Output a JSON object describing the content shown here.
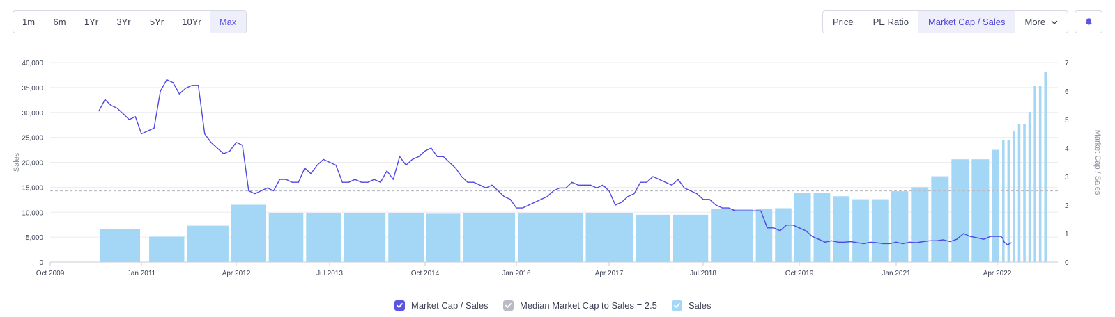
{
  "ranges": [
    {
      "label": "1m",
      "active": false
    },
    {
      "label": "6m",
      "active": false
    },
    {
      "label": "1Yr",
      "active": false
    },
    {
      "label": "3Yr",
      "active": false
    },
    {
      "label": "5Yr",
      "active": false
    },
    {
      "label": "10Yr",
      "active": false
    },
    {
      "label": "Max",
      "active": true
    }
  ],
  "metrics": [
    {
      "label": "Price",
      "active": false
    },
    {
      "label": "PE Ratio",
      "active": false
    },
    {
      "label": "Market Cap / Sales",
      "active": true
    }
  ],
  "more_label": "More",
  "legend": [
    {
      "label": "Market Cap / Sales",
      "color": "#5b55e6",
      "checked": true
    },
    {
      "label": "Median Market Cap to Sales = 2.5",
      "color": "#b9bcc4",
      "checked": true
    },
    {
      "label": "Sales",
      "color": "#a3d7f5",
      "checked": true
    }
  ],
  "colors": {
    "line": "#4f48e2",
    "bars": "#a3d7f5",
    "median": "#b9bcc4",
    "grid": "#ececf0",
    "axis_text": "#3a3f52",
    "active_accent": "#5b55e6"
  },
  "chart_data": {
    "type": "bar",
    "xlabel": "",
    "x_ticks": [
      "Oct 2009",
      "Jan 2011",
      "Apr 2012",
      "Jul 2013",
      "Oct 2014",
      "Jan 2016",
      "Apr 2017",
      "Jul 2018",
      "Oct 2019",
      "Jan 2021",
      "Apr 2022"
    ],
    "x_tick_dates": [
      "2009-10",
      "2011-01",
      "2012-04",
      "2013-07",
      "2014-10",
      "2016-01",
      "2017-04",
      "2018-07",
      "2019-10",
      "2021-01",
      "2022-04"
    ],
    "x_range": [
      "2009-10",
      "2022-12"
    ],
    "y_left": {
      "label": "Sales",
      "ylim": [
        0,
        40000
      ],
      "ticks": [
        "0",
        "5,000",
        "10,000",
        "15,000",
        "20,000",
        "25,000",
        "30,000",
        "35,000",
        "40,000"
      ]
    },
    "y_right": {
      "label": "Market Cap / Sales",
      "ylim": [
        0,
        7
      ],
      "ticks": [
        "0",
        "1",
        "2",
        "3",
        "4",
        "5",
        "6",
        "7"
      ]
    },
    "grid": true,
    "legend_position": "bottom",
    "sales_bars": [
      {
        "start": "2010-06",
        "end": "2011-01",
        "value": 6600
      },
      {
        "start": "2011-02",
        "end": "2011-08",
        "value": 5100
      },
      {
        "start": "2011-08",
        "end": "2012-03",
        "value": 7300
      },
      {
        "start": "2012-03",
        "end": "2012-09",
        "value": 11500
      },
      {
        "start": "2012-09",
        "end": "2013-03",
        "value": 9800
      },
      {
        "start": "2013-03",
        "end": "2013-09",
        "value": 9800
      },
      {
        "start": "2013-09",
        "end": "2014-04",
        "value": 9900
      },
      {
        "start": "2014-04",
        "end": "2014-10",
        "value": 9900
      },
      {
        "start": "2014-10",
        "end": "2015-04",
        "value": 9700
      },
      {
        "start": "2015-04",
        "end": "2016-01",
        "value": 9900
      },
      {
        "start": "2016-01",
        "end": "2016-12",
        "value": 9800
      },
      {
        "start": "2016-12",
        "end": "2017-08",
        "value": 9800
      },
      {
        "start": "2017-08",
        "end": "2018-02",
        "value": 9500
      },
      {
        "start": "2018-02",
        "end": "2018-08",
        "value": 9500
      },
      {
        "start": "2018-08",
        "end": "2019-03",
        "value": 10700
      },
      {
        "start": "2019-03",
        "end": "2019-06",
        "value": 10700
      },
      {
        "start": "2019-06",
        "end": "2019-09",
        "value": 10800
      },
      {
        "start": "2019-09",
        "end": "2019-12",
        "value": 13800
      },
      {
        "start": "2019-12",
        "end": "2020-03",
        "value": 13800
      },
      {
        "start": "2020-03",
        "end": "2020-06",
        "value": 13200
      },
      {
        "start": "2020-06",
        "end": "2020-09",
        "value": 12600
      },
      {
        "start": "2020-09",
        "end": "2020-12",
        "value": 12600
      },
      {
        "start": "2020-12",
        "end": "2021-03",
        "value": 14200
      },
      {
        "start": "2021-03",
        "end": "2021-06",
        "value": 15000
      },
      {
        "start": "2021-06",
        "end": "2021-09",
        "value": 17200
      },
      {
        "start": "2021-09",
        "end": "2021-12",
        "value": 20600
      },
      {
        "start": "2021-12",
        "end": "2022-03",
        "value": 20600
      },
      {
        "start": "2022-03",
        "end": "2022-06",
        "value": 22500
      },
      {
        "start": "2022-06",
        "end": "2022-09",
        "value": 24500
      },
      {
        "start": "2022-09",
        "end": "2022-12",
        "value": 24500
      },
      {
        "start": "2022-12",
        "end": "2023-03",
        "value": 26300
      },
      {
        "start": "2023-03",
        "end": "2023-06",
        "value": 27700
      },
      {
        "start": "2023-06",
        "end": "2023-09",
        "value": 27700
      },
      {
        "start": "2023-09",
        "end": "2023-12",
        "value": 30100
      },
      {
        "start": "2023-12",
        "end": "2024-03",
        "value": 35400
      },
      {
        "start": "2024-03",
        "end": "2024-06",
        "value": 35400
      },
      {
        "start": "2024-06",
        "end": "2024-09",
        "value": 38200
      }
    ],
    "median_value": 2.5,
    "mcap_sales_series": [
      [
        "2010-06",
        5.3
      ],
      [
        "2010-07",
        5.7
      ],
      [
        "2010-08",
        5.5
      ],
      [
        "2010-09",
        5.4
      ],
      [
        "2010-10",
        5.2
      ],
      [
        "2010-11",
        5.0
      ],
      [
        "2010-12",
        5.1
      ],
      [
        "2011-01",
        4.5
      ],
      [
        "2011-02",
        4.6
      ],
      [
        "2011-03",
        4.7
      ],
      [
        "2011-04",
        6.0
      ],
      [
        "2011-05",
        6.4
      ],
      [
        "2011-06",
        6.3
      ],
      [
        "2011-07",
        5.9
      ],
      [
        "2011-08",
        6.1
      ],
      [
        "2011-09",
        6.2
      ],
      [
        "2011-10",
        6.2
      ],
      [
        "2011-11",
        4.5
      ],
      [
        "2011-12",
        4.2
      ],
      [
        "2012-01",
        4.0
      ],
      [
        "2012-02",
        3.8
      ],
      [
        "2012-03",
        3.9
      ],
      [
        "2012-04",
        4.2
      ],
      [
        "2012-05",
        4.1
      ],
      [
        "2012-06",
        2.5
      ],
      [
        "2012-07",
        2.4
      ],
      [
        "2012-08",
        2.5
      ],
      [
        "2012-09",
        2.6
      ],
      [
        "2012-10",
        2.5
      ],
      [
        "2012-11",
        2.9
      ],
      [
        "2012-12",
        2.9
      ],
      [
        "2013-01",
        2.8
      ],
      [
        "2013-02",
        2.8
      ],
      [
        "2013-03",
        3.3
      ],
      [
        "2013-04",
        3.1
      ],
      [
        "2013-05",
        3.4
      ],
      [
        "2013-06",
        3.6
      ],
      [
        "2013-07",
        3.5
      ],
      [
        "2013-08",
        3.4
      ],
      [
        "2013-09",
        2.8
      ],
      [
        "2013-10",
        2.8
      ],
      [
        "2013-11",
        2.9
      ],
      [
        "2013-12",
        2.8
      ],
      [
        "2014-01",
        2.8
      ],
      [
        "2014-02",
        2.9
      ],
      [
        "2014-03",
        2.8
      ],
      [
        "2014-04",
        3.2
      ],
      [
        "2014-05",
        2.9
      ],
      [
        "2014-06",
        3.7
      ],
      [
        "2014-07",
        3.4
      ],
      [
        "2014-08",
        3.6
      ],
      [
        "2014-09",
        3.7
      ],
      [
        "2014-10",
        3.9
      ],
      [
        "2014-11",
        4.0
      ],
      [
        "2014-12",
        3.7
      ],
      [
        "2015-01",
        3.7
      ],
      [
        "2015-02",
        3.5
      ],
      [
        "2015-03",
        3.3
      ],
      [
        "2015-04",
        3.0
      ],
      [
        "2015-05",
        2.8
      ],
      [
        "2015-06",
        2.8
      ],
      [
        "2015-07",
        2.7
      ],
      [
        "2015-08",
        2.6
      ],
      [
        "2015-09",
        2.7
      ],
      [
        "2015-10",
        2.5
      ],
      [
        "2015-11",
        2.3
      ],
      [
        "2015-12",
        2.2
      ],
      [
        "2016-01",
        1.9
      ],
      [
        "2016-02",
        1.9
      ],
      [
        "2016-03",
        2.0
      ],
      [
        "2016-04",
        2.1
      ],
      [
        "2016-05",
        2.2
      ],
      [
        "2016-06",
        2.3
      ],
      [
        "2016-07",
        2.5
      ],
      [
        "2016-08",
        2.6
      ],
      [
        "2016-09",
        2.6
      ],
      [
        "2016-10",
        2.8
      ],
      [
        "2016-11",
        2.7
      ],
      [
        "2016-12",
        2.7
      ],
      [
        "2017-01",
        2.7
      ],
      [
        "2017-02",
        2.6
      ],
      [
        "2017-03",
        2.7
      ],
      [
        "2017-04",
        2.5
      ],
      [
        "2017-05",
        2.0
      ],
      [
        "2017-06",
        2.1
      ],
      [
        "2017-07",
        2.3
      ],
      [
        "2017-08",
        2.4
      ],
      [
        "2017-09",
        2.8
      ],
      [
        "2017-10",
        2.8
      ],
      [
        "2017-11",
        3.0
      ],
      [
        "2017-12",
        2.9
      ],
      [
        "2018-01",
        2.8
      ],
      [
        "2018-02",
        2.7
      ],
      [
        "2018-03",
        2.9
      ],
      [
        "2018-04",
        2.6
      ],
      [
        "2018-05",
        2.5
      ],
      [
        "2018-06",
        2.4
      ],
      [
        "2018-07",
        2.2
      ],
      [
        "2018-08",
        2.2
      ],
      [
        "2018-09",
        2.0
      ],
      [
        "2018-10",
        1.9
      ],
      [
        "2018-11",
        1.9
      ],
      [
        "2018-12",
        1.8
      ],
      [
        "2019-01",
        1.8
      ],
      [
        "2019-02",
        1.8
      ],
      [
        "2019-03",
        1.8
      ],
      [
        "2019-04",
        1.8
      ],
      [
        "2019-05",
        1.2
      ],
      [
        "2019-06",
        1.2
      ],
      [
        "2019-07",
        1.1
      ],
      [
        "2019-08",
        1.3
      ],
      [
        "2019-09",
        1.3
      ],
      [
        "2019-10",
        1.2
      ],
      [
        "2019-11",
        1.1
      ],
      [
        "2019-12",
        0.9
      ],
      [
        "2020-01",
        0.8
      ],
      [
        "2020-02",
        0.7
      ],
      [
        "2020-03",
        0.75
      ],
      [
        "2020-04",
        0.7
      ],
      [
        "2020-05",
        0.7
      ],
      [
        "2020-06",
        0.72
      ],
      [
        "2020-07",
        0.68
      ],
      [
        "2020-08",
        0.65
      ],
      [
        "2020-09",
        0.7
      ],
      [
        "2020-10",
        0.68
      ],
      [
        "2020-11",
        0.65
      ],
      [
        "2020-12",
        0.65
      ],
      [
        "2021-01",
        0.7
      ],
      [
        "2021-02",
        0.65
      ],
      [
        "2021-03",
        0.7
      ],
      [
        "2021-04",
        0.68
      ],
      [
        "2021-05",
        0.72
      ],
      [
        "2021-06",
        0.75
      ],
      [
        "2021-07",
        0.75
      ],
      [
        "2021-08",
        0.78
      ],
      [
        "2021-09",
        0.72
      ],
      [
        "2021-10",
        0.8
      ],
      [
        "2021-11",
        1.0
      ],
      [
        "2021-12",
        0.9
      ],
      [
        "2022-01",
        0.85
      ],
      [
        "2022-02",
        0.8
      ],
      [
        "2022-03",
        0.9
      ],
      [
        "2022-04",
        0.9
      ],
      [
        "2022-05",
        0.9
      ],
      [
        "2022-06",
        0.9
      ],
      [
        "2022-07",
        0.85
      ],
      [
        "2022-08",
        0.7
      ],
      [
        "2022-09",
        0.65
      ],
      [
        "2022-10",
        0.6
      ],
      [
        "2022-11",
        0.65
      ],
      [
        "2022-12",
        0.68
      ]
    ]
  }
}
